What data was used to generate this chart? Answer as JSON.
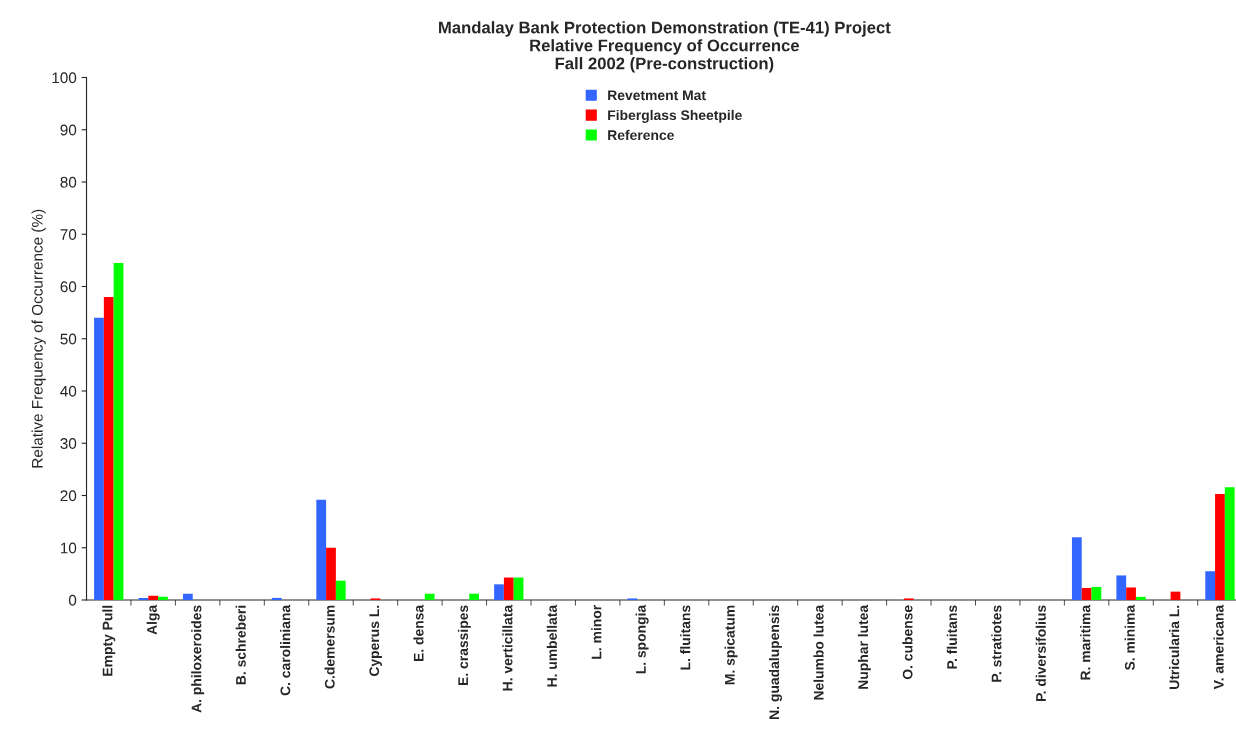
{
  "chart_data": {
    "type": "bar",
    "title": "Mandalay Bank Protection Demonstration (TE-41) Project\nRelative Frequency of Occurrence\nFall 2002 (Pre-construction)",
    "ylabel": "Relative Frequency of Occurrence (%)",
    "categories": [
      "Empty Pull",
      "Alga",
      "A. philoxeroides",
      "B. schreberi",
      "C. caroliniana",
      "C.demersum",
      "Cyperus L.",
      "E. densa",
      "E. crassipes",
      "H. verticillata",
      "H. umbellata",
      "L. minor",
      "L. spongia",
      "L. fluitans",
      "M. spicatum",
      "N. guadalupensis",
      "Nelumbo lutea",
      "Nuphar lutea",
      "O. cubense",
      "P. fluitans",
      "P. stratiotes",
      "P. diversifolius",
      "R. maritima",
      "S. minima",
      "Utricularia L.",
      "V. americana"
    ],
    "series": [
      {
        "name": "Revetment Mat",
        "color": "#3366ff",
        "values": [
          54,
          0.4,
          1.2,
          0,
          0.4,
          19.2,
          0,
          0,
          0,
          3,
          0,
          0,
          0.3,
          0,
          0,
          0,
          0,
          0,
          0,
          0,
          0,
          0,
          12,
          4.7,
          0,
          5.5
        ]
      },
      {
        "name": "Fiberglass Sheetpile",
        "color": "#ff0000",
        "values": [
          58,
          0.8,
          0,
          0,
          0,
          10,
          0.3,
          0,
          0,
          4.3,
          0,
          0,
          0,
          0,
          0,
          0,
          0,
          0,
          0.3,
          0,
          0,
          0,
          2.3,
          2.4,
          1.6,
          20.3
        ]
      },
      {
        "name": "Reference",
        "color": "#00ff00",
        "values": [
          64.5,
          0.6,
          0,
          0,
          0,
          3.7,
          0,
          1.2,
          1.2,
          4.3,
          0,
          0,
          0,
          0,
          0,
          0,
          0,
          0,
          0,
          0,
          0,
          0,
          2.5,
          0.6,
          0,
          21.6
        ]
      }
    ],
    "ylim": [
      0,
      100
    ],
    "yticks": [
      0,
      10,
      20,
      30,
      40,
      50,
      60,
      70,
      80,
      90,
      100
    ],
    "grid": false,
    "legend": "top"
  }
}
